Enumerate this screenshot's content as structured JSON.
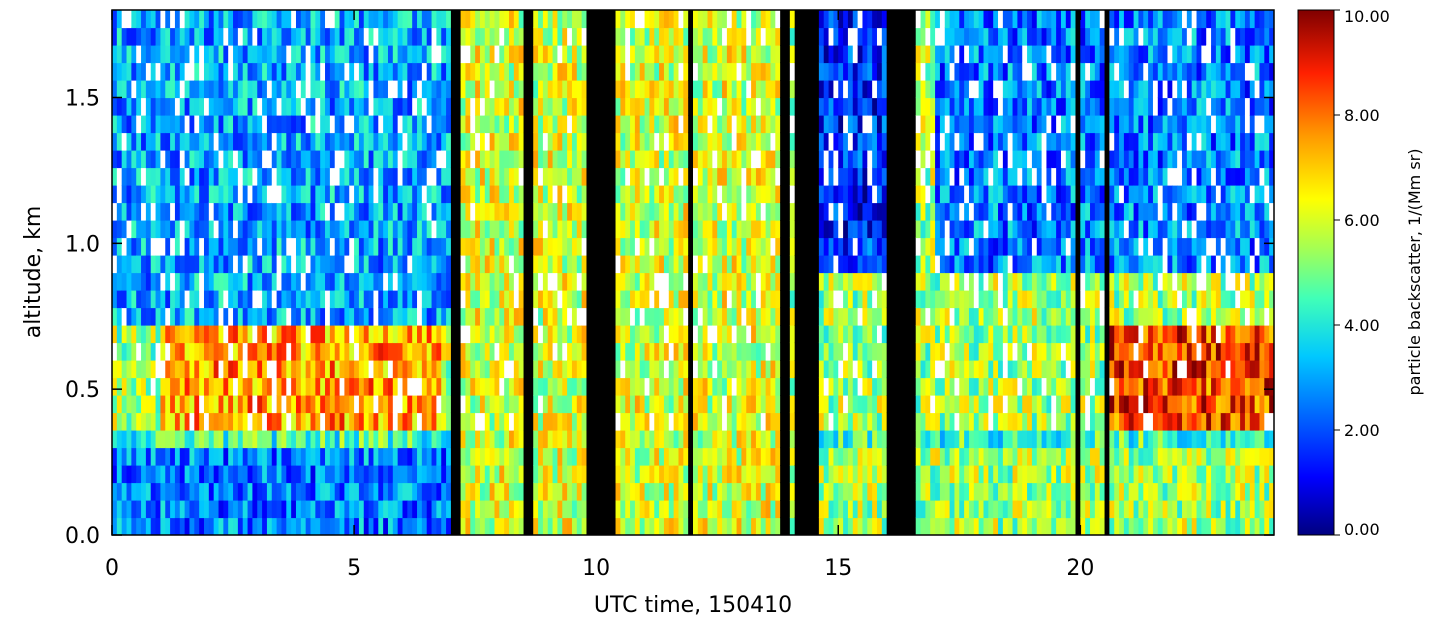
{
  "chart_data": {
    "type": "heatmap",
    "title": "",
    "xlabel": "UTC time, 150410",
    "ylabel": "altitude, km",
    "xlim": [
      0,
      24
    ],
    "ylim": [
      0,
      1.8
    ],
    "xticks": [
      0,
      5,
      10,
      15,
      20
    ],
    "xtick_labels": [
      "0",
      "5",
      "10",
      "15",
      "20"
    ],
    "yticks": [
      0.0,
      0.5,
      1.0,
      1.5
    ],
    "ytick_labels": [
      "0.0",
      "0.5",
      "1.0",
      "1.5"
    ],
    "colorbar": {
      "label": "particle backscatter, 1/(Mm sr)",
      "range": [
        0,
        10
      ],
      "ticks": [
        0,
        2,
        4,
        6,
        8,
        10
      ],
      "tick_labels": [
        "0.00",
        "2.00",
        "4.00",
        "6.00",
        "8.00",
        "10.00"
      ],
      "colormap": "jet"
    },
    "no_data_color": "#ffffff",
    "masked_color": "#000000",
    "masked_intervals_hours": [
      [
        7.0,
        7.2
      ],
      [
        8.55,
        8.75
      ],
      [
        9.8,
        10.4
      ],
      [
        11.95,
        12.05
      ],
      [
        13.8,
        14.0
      ],
      [
        14.15,
        14.6
      ],
      [
        16.0,
        16.6
      ],
      [
        19.95,
        20.05
      ],
      [
        20.5,
        20.6
      ]
    ],
    "layers": [
      {
        "alt": [
          0.0,
          0.28
        ],
        "time": [
          0,
          7
        ],
        "value": 2.5
      },
      {
        "alt": [
          0.28,
          0.35
        ],
        "time": [
          0,
          24
        ],
        "value": 4.5
      },
      {
        "alt": [
          0.35,
          0.75
        ],
        "time": [
          1.0,
          6.8
        ],
        "value": 7.5
      },
      {
        "alt": [
          0.75,
          1.8
        ],
        "time": [
          0,
          7
        ],
        "value": 3.0
      },
      {
        "alt": [
          0.0,
          1.8
        ],
        "time": [
          7.2,
          13.8
        ],
        "value": 6.0
      },
      {
        "alt": [
          0.9,
          1.8
        ],
        "time": [
          14.6,
          16.0
        ],
        "value": 1.5
      },
      {
        "alt": [
          0.9,
          1.8
        ],
        "time": [
          17.0,
          24.0
        ],
        "value": 2.5
      },
      {
        "alt": [
          0.35,
          0.75
        ],
        "time": [
          20.6,
          24.0
        ],
        "value": 8.5
      }
    ]
  }
}
